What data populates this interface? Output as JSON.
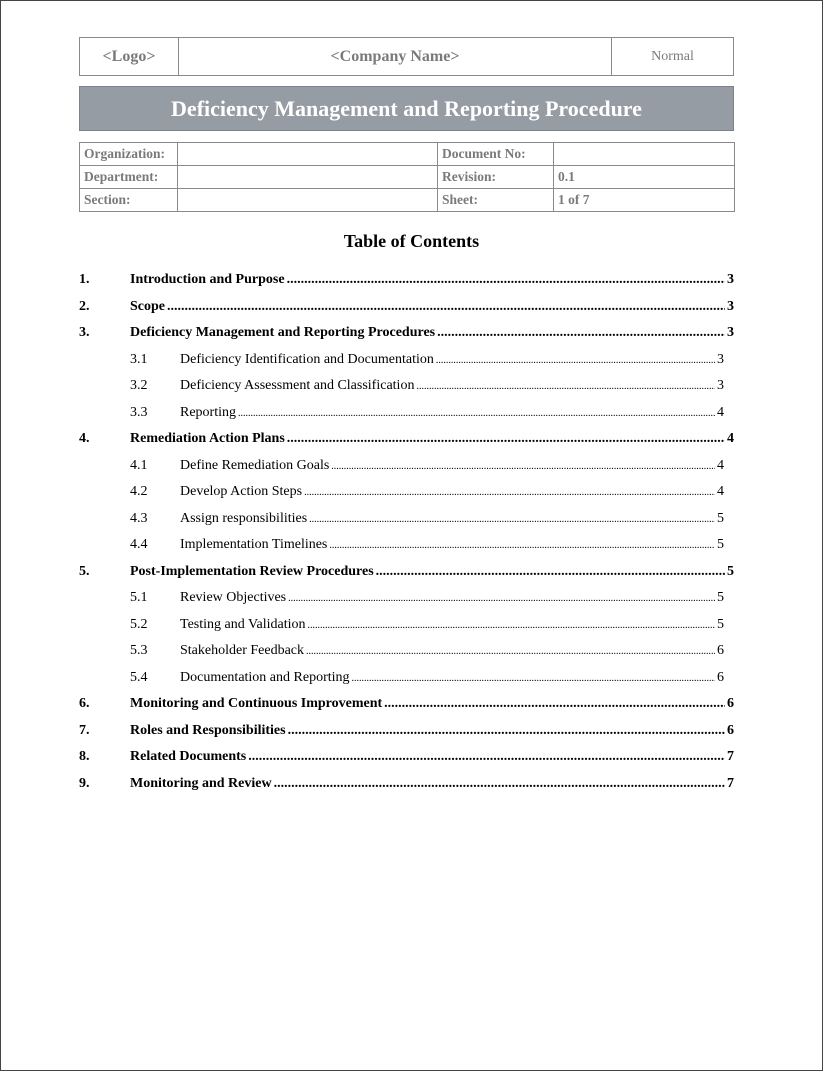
{
  "header": {
    "logo": "<Logo>",
    "company": "<Company Name>",
    "classification": "Normal"
  },
  "title": "Deficiency Management and Reporting Procedure",
  "info": {
    "organization_label": "Organization:",
    "organization_value": "",
    "document_no_label": "Document No:",
    "document_no_value": "",
    "department_label": "Department:",
    "department_value": "",
    "revision_label": "Revision:",
    "revision_value": "0.1",
    "section_label": "Section:",
    "section_value": "",
    "sheet_label": "Sheet:",
    "sheet_value": "1 of 7"
  },
  "toc": {
    "heading": "Table of Contents",
    "entries": [
      {
        "level": 1,
        "num": "1.",
        "text": "Introduction and Purpose",
        "page": "3"
      },
      {
        "level": 1,
        "num": "2.",
        "text": "Scope",
        "page": "3"
      },
      {
        "level": 1,
        "num": "3.",
        "text": "Deficiency Management and Reporting Procedures",
        "page": "3"
      },
      {
        "level": 2,
        "num": "3.1",
        "text": "Deficiency Identification and Documentation",
        "page": "3"
      },
      {
        "level": 2,
        "num": "3.2",
        "text": "Deficiency Assessment and Classification",
        "page": "3"
      },
      {
        "level": 2,
        "num": "3.3",
        "text": "Reporting",
        "page": "4"
      },
      {
        "level": 1,
        "num": "4.",
        "text": "Remediation Action Plans",
        "page": "4"
      },
      {
        "level": 2,
        "num": "4.1",
        "text": "Define Remediation Goals",
        "page": "4"
      },
      {
        "level": 2,
        "num": "4.2",
        "text": "Develop Action Steps",
        "page": "4"
      },
      {
        "level": 2,
        "num": "4.3",
        "text": "Assign responsibilities",
        "page": "5"
      },
      {
        "level": 2,
        "num": "4.4",
        "text": "Implementation Timelines",
        "page": "5"
      },
      {
        "level": 1,
        "num": "5.",
        "text": "Post-Implementation Review Procedures",
        "page": "5"
      },
      {
        "level": 2,
        "num": "5.1",
        "text": "Review Objectives",
        "page": "5"
      },
      {
        "level": 2,
        "num": "5.2",
        "text": "Testing and Validation",
        "page": "5"
      },
      {
        "level": 2,
        "num": "5.3",
        "text": "Stakeholder Feedback",
        "page": "6"
      },
      {
        "level": 2,
        "num": "5.4",
        "text": "Documentation and Reporting",
        "page": "6"
      },
      {
        "level": 1,
        "num": "6.",
        "text": "Monitoring and Continuous Improvement",
        "page": "6"
      },
      {
        "level": 1,
        "num": "7.",
        "text": "Roles and Responsibilities",
        "page": "6"
      },
      {
        "level": 1,
        "num": "8.",
        "text": "Related Documents",
        "page": "7"
      },
      {
        "level": 1,
        "num": "9.",
        "text": "Monitoring and Review",
        "page": "7"
      }
    ]
  }
}
